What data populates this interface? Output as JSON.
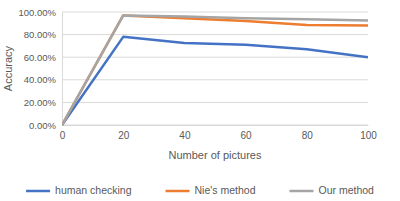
{
  "chart_data": {
    "type": "line",
    "x_label": "Number of pictures",
    "y_label": "Accuracy",
    "x": [
      0,
      20,
      40,
      60,
      80,
      100
    ],
    "xlim": [
      0,
      100
    ],
    "xticks": [
      0,
      20,
      40,
      60,
      80,
      100
    ],
    "ylim": [
      0,
      100
    ],
    "yticks": [
      {
        "value": 0,
        "label": "0.00%"
      },
      {
        "value": 20,
        "label": "20.00%"
      },
      {
        "value": 40,
        "label": "40.00%"
      },
      {
        "value": 60,
        "label": "60.00%"
      },
      {
        "value": 80,
        "label": "80.00%"
      },
      {
        "value": 100,
        "label": "100.00%"
      }
    ],
    "grid": true,
    "legend": "bottom",
    "series": [
      {
        "name": "human checking",
        "color": "#4472c4",
        "values": [
          0,
          78,
          72.5,
          71,
          67,
          60
        ]
      },
      {
        "name": "Nie's method",
        "color": "#ed7d31",
        "values": [
          0,
          97,
          94.5,
          92,
          88.5,
          88
        ]
      },
      {
        "name": "Our method",
        "color": "#a5a5a5",
        "values": [
          0,
          97,
          96,
          94.5,
          93.5,
          92.5
        ]
      }
    ]
  }
}
